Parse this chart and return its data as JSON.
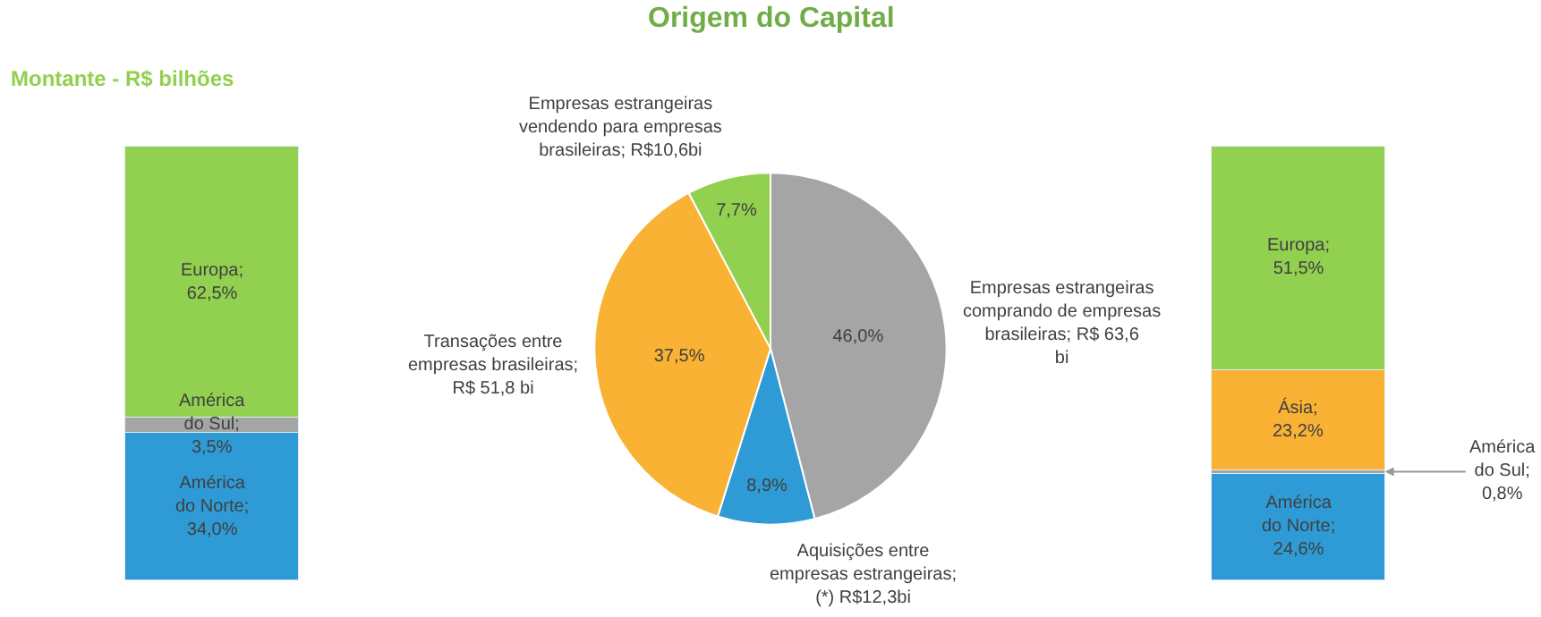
{
  "chart_data": [
    {
      "type": "bar",
      "title": "Montante - R$ bilhões",
      "stacked": true,
      "categories": [
        null
      ],
      "tick_labels": false,
      "series": [
        {
          "color": "#2e9bd6",
          "values": [
            34.0
          ],
          "value_labels": [
            "América do Norte; 34,0%"
          ]
        },
        {
          "color": "#a5a5a5",
          "values": [
            3.5
          ],
          "value_labels": [
            "América do Sul; 3,5%"
          ]
        },
        {
          "color": "#92d050",
          "values": [
            62.5
          ],
          "value_labels": [
            "Europa; 62,5%"
          ]
        }
      ]
    },
    {
      "type": "pie",
      "title": "Origem do Capital",
      "categories": [
        "Empresas estrangeiras comprando de empresas brasileiras; R$ 63,6 bi",
        "Aquisições entre empresas estrangeiras; (*) R$12,3bi",
        "Transações entre empresas brasileiras; R$ 51,8 bi",
        "Empresas estrangeiras vendendo para empresas brasileiras; R$10,6bi"
      ],
      "values": [
        46.0,
        8.9,
        37.5,
        7.7
      ],
      "colors": [
        "#a5a5a5",
        "#2e9bd6",
        "#f9b233",
        "#92d050"
      ],
      "value_labels": [
        "46,0%",
        "8,9%",
        "37,5%",
        "7,7%"
      ]
    },
    {
      "type": "bar",
      "stacked": true,
      "categories": [
        null
      ],
      "tick_labels": false,
      "series": [
        {
          "color": "#2e9bd6",
          "values": [
            24.6
          ],
          "value_labels": [
            "América do Norte; 24,6%"
          ]
        },
        {
          "color": "#a5a5a5",
          "values": [
            0.8
          ],
          "value_labels": [
            "América do Sul; 0,8%"
          ]
        },
        {
          "color": "#f9b233",
          "values": [
            23.2
          ],
          "value_labels": [
            "Ásia; 23,2%"
          ]
        },
        {
          "color": "#92d050",
          "values": [
            51.5
          ],
          "value_labels": [
            "Europa; 51,5%"
          ]
        }
      ]
    }
  ]
}
